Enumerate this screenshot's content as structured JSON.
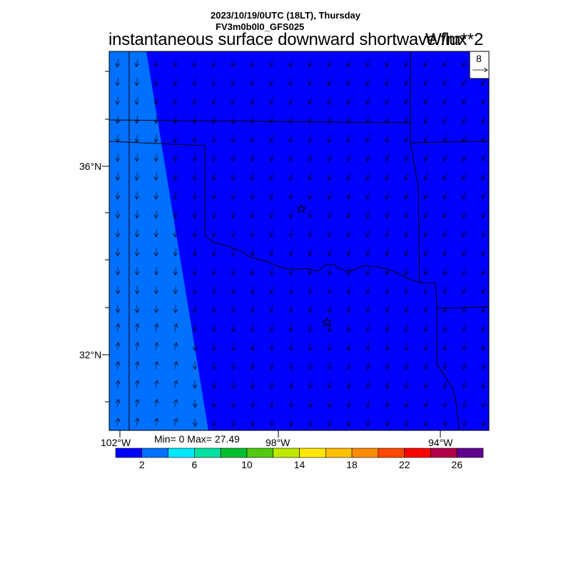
{
  "header": {
    "date_line": "2023/10/19/0UTC (18LT), Thursday",
    "model_line": "FV3m0b0l0_GFS025",
    "title": "instantaneous surface downward shortwave flux",
    "units": "W/m**2"
  },
  "vector_legend": {
    "magnitude_label": "8"
  },
  "axes": {
    "lat_ticks": [
      "36°N",
      "32°N"
    ],
    "lon_ticks": [
      "102°W",
      "98°W",
      "94°W"
    ],
    "extent": {
      "lon_min": -102,
      "lon_max": -93.1,
      "lat_min": 30.5,
      "lat_max": 38.4
    }
  },
  "stats": {
    "text": "Min= 0 Max= 27.49"
  },
  "colorbar": {
    "colors": [
      "#0000ff",
      "#0070ff",
      "#00e8ff",
      "#00e0a0",
      "#00c030",
      "#50c810",
      "#c0e800",
      "#ffe800",
      "#ffc000",
      "#ff8c00",
      "#ff4800",
      "#ff0000",
      "#b00048",
      "#600090"
    ],
    "labels": [
      "2",
      "6",
      "10",
      "14",
      "18",
      "22",
      "26"
    ]
  },
  "map": {
    "background_color": "#0000ff",
    "markers": [
      "star-icon",
      "star-icon"
    ]
  }
}
